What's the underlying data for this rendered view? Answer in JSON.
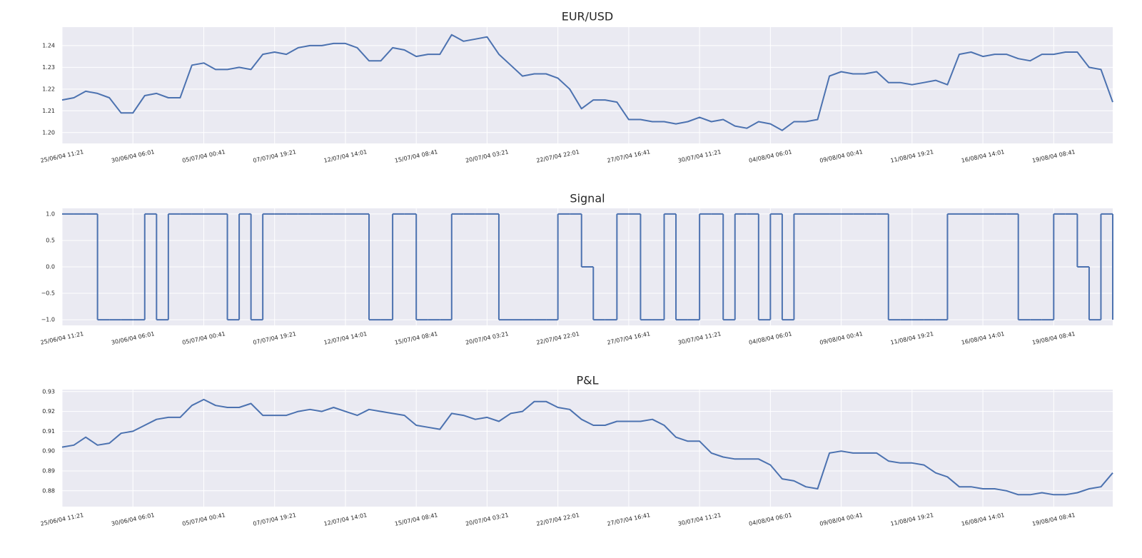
{
  "chart_data": [
    {
      "type": "line",
      "title": "EUR/USD",
      "color": "#4c72b0",
      "grid": true,
      "categories": [
        "25/06/04 11:21",
        null,
        null,
        null,
        null,
        null,
        "30/06/04 06:01",
        null,
        null,
        null,
        null,
        null,
        "05/07/04 00:41",
        null,
        null,
        null,
        null,
        null,
        "07/07/04 19:21",
        null,
        null,
        null,
        null,
        null,
        "12/07/04 14:01",
        null,
        null,
        null,
        null,
        null,
        "15/07/04 08:41",
        null,
        null,
        null,
        null,
        null,
        "20/07/04 03:21",
        null,
        null,
        null,
        null,
        null,
        "22/07/04 22:01",
        null,
        null,
        null,
        null,
        null,
        "27/07/04 16:41",
        null,
        null,
        null,
        null,
        null,
        "30/07/04 11:21",
        null,
        null,
        null,
        null,
        null,
        "04/08/04 06:01",
        null,
        null,
        null,
        null,
        null,
        "09/08/04 00:41",
        null,
        null,
        null,
        null,
        null,
        "11/08/04 19:21",
        null,
        null,
        null,
        null,
        null,
        "16/08/04 14:01",
        null,
        null,
        null,
        null,
        null,
        "19/08/04 08:41",
        null,
        null,
        null,
        null,
        null
      ],
      "values": [
        1.215,
        1.216,
        1.219,
        1.218,
        1.216,
        1.209,
        1.209,
        1.217,
        1.218,
        1.216,
        1.216,
        1.231,
        1.232,
        1.229,
        1.229,
        1.23,
        1.229,
        1.236,
        1.237,
        1.236,
        1.239,
        1.24,
        1.24,
        1.241,
        1.241,
        1.239,
        1.233,
        1.233,
        1.239,
        1.238,
        1.235,
        1.236,
        1.236,
        1.245,
        1.242,
        1.243,
        1.244,
        1.236,
        1.231,
        1.226,
        1.227,
        1.227,
        1.225,
        1.22,
        1.211,
        1.215,
        1.215,
        1.214,
        1.206,
        1.206,
        1.205,
        1.205,
        1.204,
        1.205,
        1.207,
        1.205,
        1.206,
        1.203,
        1.202,
        1.205,
        1.204,
        1.201,
        1.205,
        1.205,
        1.206,
        1.226,
        1.228,
        1.227,
        1.227,
        1.228,
        1.223,
        1.223,
        1.222,
        1.223,
        1.224,
        1.222,
        1.236,
        1.237,
        1.235,
        1.236,
        1.236,
        1.234,
        1.233,
        1.236,
        1.236,
        1.237,
        1.237,
        1.23,
        1.229,
        1.214
      ],
      "ylim": [
        1.195,
        1.2485
      ],
      "yticks": [
        {
          "value": 1.2,
          "label": "1.20"
        },
        1.21,
        1.22,
        1.23,
        1.24
      ]
    },
    {
      "type": "line",
      "title": "Signal",
      "color": "#4c72b0",
      "grid": true,
      "drawstyle": "steps-post",
      "categories": [
        "25/06/04 11:21",
        null,
        null,
        null,
        null,
        null,
        "30/06/04 06:01",
        null,
        null,
        null,
        null,
        null,
        "05/07/04 00:41",
        null,
        null,
        null,
        null,
        null,
        "07/07/04 19:21",
        null,
        null,
        null,
        null,
        null,
        "12/07/04 14:01",
        null,
        null,
        null,
        null,
        null,
        "15/07/04 08:41",
        null,
        null,
        null,
        null,
        null,
        "20/07/04 03:21",
        null,
        null,
        null,
        null,
        null,
        "22/07/04 22:01",
        null,
        null,
        null,
        null,
        null,
        "27/07/04 16:41",
        null,
        null,
        null,
        null,
        null,
        "30/07/04 11:21",
        null,
        null,
        null,
        null,
        null,
        "04/08/04 06:01",
        null,
        null,
        null,
        null,
        null,
        "09/08/04 00:41",
        null,
        null,
        null,
        null,
        null,
        "11/08/04 19:21",
        null,
        null,
        null,
        null,
        null,
        "16/08/04 14:01",
        null,
        null,
        null,
        null,
        null,
        "19/08/04 08:41",
        null,
        null,
        null,
        null,
        null
      ],
      "values": [
        1,
        1,
        1,
        -1,
        -1,
        -1,
        -1,
        1,
        -1,
        1,
        1,
        1,
        1,
        1,
        -1,
        1,
        -1,
        1,
        1,
        1,
        1,
        1,
        1,
        1,
        1,
        1,
        -1,
        -1,
        1,
        1,
        -1,
        -1,
        -1,
        1,
        1,
        1,
        1,
        -1,
        -1,
        -1,
        -1,
        -1,
        1,
        1,
        0,
        -1,
        -1,
        1,
        1,
        -1,
        -1,
        1,
        -1,
        -1,
        1,
        1,
        -1,
        1,
        1,
        -1,
        1,
        -1,
        1,
        1,
        1,
        1,
        1,
        1,
        1,
        1,
        -1,
        -1,
        -1,
        -1,
        -1,
        1,
        1,
        1,
        1,
        1,
        1,
        -1,
        -1,
        -1,
        1,
        1,
        0,
        -1,
        1,
        -1
      ],
      "ylim": [
        -1.107,
        1.107
      ],
      "yticks": [
        {
          "value": -1,
          "label": "−1.0"
        },
        {
          "value": -0.5,
          "label": "−0.5"
        },
        {
          "value": 0,
          "label": "0.0"
        },
        {
          "value": 0.5,
          "label": "0.5"
        },
        {
          "value": 1,
          "label": "1.0"
        }
      ]
    },
    {
      "type": "line",
      "title": "P&L",
      "color": "#4c72b0",
      "grid": true,
      "categories": [
        "25/06/04 11:21",
        null,
        null,
        null,
        null,
        null,
        "30/06/04 06:01",
        null,
        null,
        null,
        null,
        null,
        "05/07/04 00:41",
        null,
        null,
        null,
        null,
        null,
        "07/07/04 19:21",
        null,
        null,
        null,
        null,
        null,
        "12/07/04 14:01",
        null,
        null,
        null,
        null,
        null,
        "15/07/04 08:41",
        null,
        null,
        null,
        null,
        null,
        "20/07/04 03:21",
        null,
        null,
        null,
        null,
        null,
        "22/07/04 22:01",
        null,
        null,
        null,
        null,
        null,
        "27/07/04 16:41",
        null,
        null,
        null,
        null,
        null,
        "30/07/04 11:21",
        null,
        null,
        null,
        null,
        null,
        "04/08/04 06:01",
        null,
        null,
        null,
        null,
        null,
        "09/08/04 00:41",
        null,
        null,
        null,
        null,
        null,
        "11/08/04 19:21",
        null,
        null,
        null,
        null,
        null,
        "16/08/04 14:01",
        null,
        null,
        null,
        null,
        null,
        "19/08/04 08:41",
        null,
        null,
        null,
        null,
        null
      ],
      "values": [
        0.902,
        0.903,
        0.907,
        0.903,
        0.904,
        0.909,
        0.91,
        0.913,
        0.916,
        0.917,
        0.917,
        0.923,
        0.926,
        0.923,
        0.922,
        0.922,
        0.924,
        0.918,
        0.918,
        0.918,
        0.92,
        0.921,
        0.92,
        0.922,
        0.92,
        0.918,
        0.921,
        0.92,
        0.919,
        0.918,
        0.913,
        0.912,
        0.911,
        0.919,
        0.918,
        0.916,
        0.917,
        0.915,
        0.919,
        0.92,
        0.925,
        0.925,
        0.922,
        0.921,
        0.916,
        0.913,
        0.913,
        0.915,
        0.915,
        0.915,
        0.916,
        0.913,
        0.907,
        0.905,
        0.905,
        0.899,
        0.897,
        0.896,
        0.896,
        0.896,
        0.893,
        0.886,
        0.885,
        0.882,
        0.881,
        0.899,
        0.9,
        0.899,
        0.899,
        0.899,
        0.895,
        0.894,
        0.894,
        0.893,
        0.889,
        0.887,
        0.882,
        0.882,
        0.881,
        0.881,
        0.88,
        0.878,
        0.878,
        0.879,
        0.878,
        0.878,
        0.879,
        0.881,
        0.882,
        0.889
      ],
      "ylim": [
        0.872,
        0.931
      ],
      "yticks": [
        0.88,
        0.89,
        {
          "value": 0.9,
          "label": "0.90"
        },
        0.91,
        0.92,
        0.93
      ]
    }
  ]
}
